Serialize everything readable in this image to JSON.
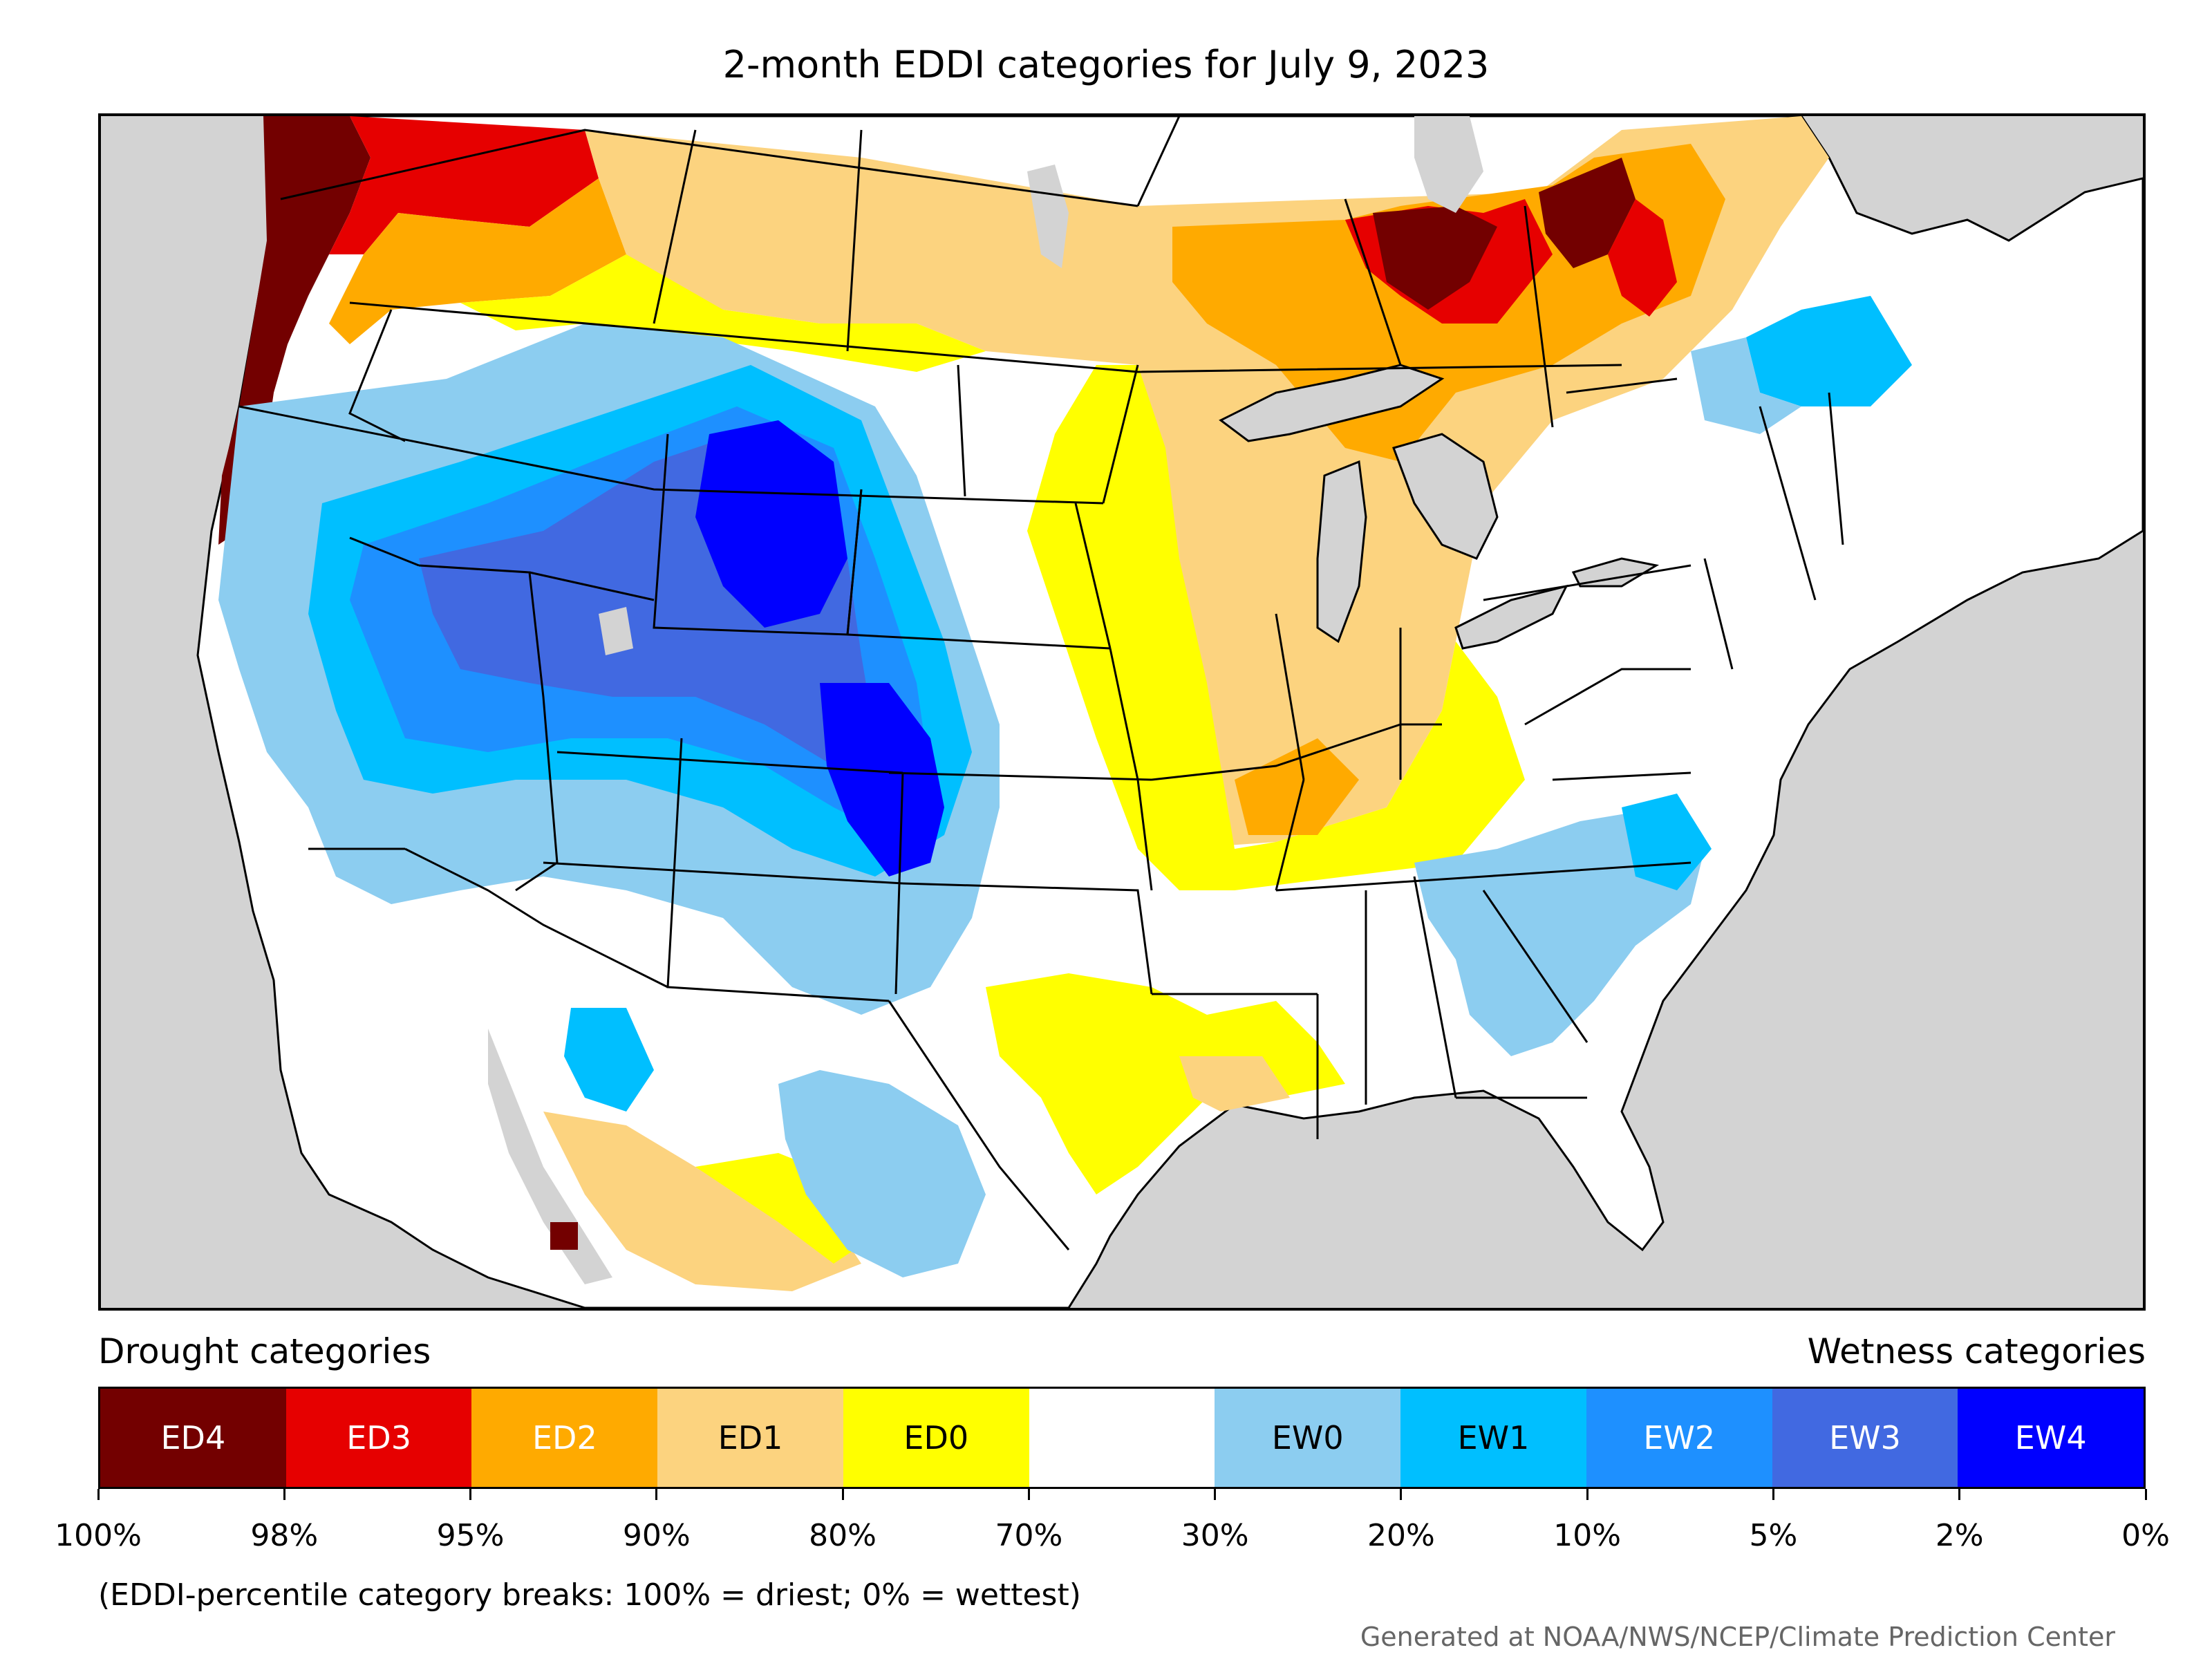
{
  "title": "2-month EDDI categories for July 9, 2023",
  "left_heading": "Drought categories",
  "right_heading": "Wetness categories",
  "categories": [
    {
      "label": "ED4",
      "color": "#730000",
      "text_color": "#ffffff"
    },
    {
      "label": "ED3",
      "color": "#e60000",
      "text_color": "#ffffff"
    },
    {
      "label": "ED2",
      "color": "#ffaa00",
      "text_color": "#ffffff"
    },
    {
      "label": "ED1",
      "color": "#fcd37f",
      "text_color": "#000000"
    },
    {
      "label": "ED0",
      "color": "#ffff00",
      "text_color": "#000000"
    },
    {
      "label": "",
      "color": "#ffffff",
      "text_color": "#000000"
    },
    {
      "label": "EW0",
      "color": "#8ccdf0",
      "text_color": "#000000"
    },
    {
      "label": "EW1",
      "color": "#00bfff",
      "text_color": "#000000"
    },
    {
      "label": "EW2",
      "color": "#1e90ff",
      "text_color": "#ffffff"
    },
    {
      "label": "EW3",
      "color": "#4169e1",
      "text_color": "#ffffff"
    },
    {
      "label": "EW4",
      "color": "#0000ff",
      "text_color": "#ffffff"
    }
  ],
  "tick_labels": [
    "100%",
    "98%",
    "95%",
    "90%",
    "80%",
    "70%",
    "30%",
    "20%",
    "10%",
    "5%",
    "2%",
    "0%"
  ],
  "note": "(EDDI-percentile category breaks: 100% = driest; 0% = wettest)",
  "credit": "Generated at NOAA/NWS/NCEP/Climate Prediction Center",
  "map_colors": {
    "background": "#d3d3d3",
    "land": "#ffffff",
    "water": "#d3d3d3",
    "borders": "#000000"
  }
}
